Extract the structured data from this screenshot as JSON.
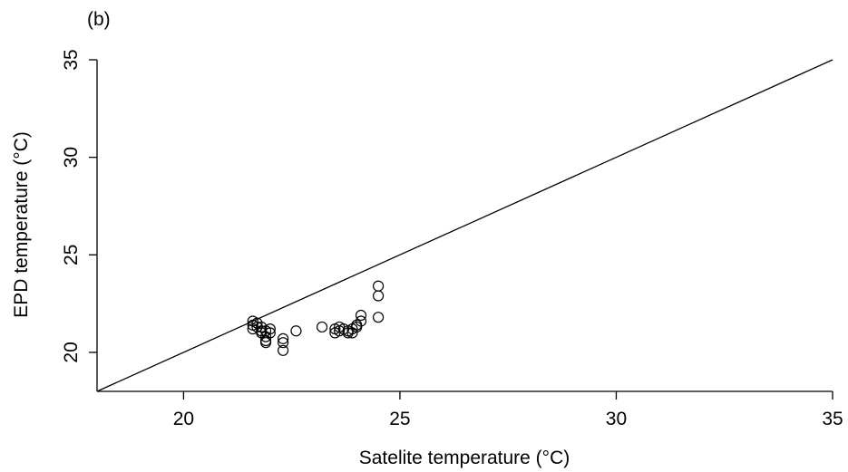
{
  "chart_data": {
    "type": "scatter",
    "panel_label": "(b)",
    "xlabel": "Satelite temperature (°C)",
    "ylabel": "EPD temperature (°C)",
    "xlim": [
      18,
      35
    ],
    "ylim": [
      18,
      35
    ],
    "x_ticks": [
      20,
      25,
      30,
      35
    ],
    "y_ticks": [
      20,
      25,
      30,
      35
    ],
    "grid": false,
    "legend": "none",
    "marker": "open-circle",
    "reference_line": {
      "type": "identity",
      "from": [
        18,
        18
      ],
      "to": [
        35,
        35
      ]
    },
    "points": [
      {
        "x": 21.6,
        "y": 21.6
      },
      {
        "x": 21.6,
        "y": 21.4
      },
      {
        "x": 21.6,
        "y": 21.2
      },
      {
        "x": 21.7,
        "y": 21.5
      },
      {
        "x": 21.7,
        "y": 21.3
      },
      {
        "x": 21.8,
        "y": 21.3
      },
      {
        "x": 21.8,
        "y": 21.1
      },
      {
        "x": 21.8,
        "y": 21.0
      },
      {
        "x": 21.9,
        "y": 21.1
      },
      {
        "x": 21.9,
        "y": 20.8
      },
      {
        "x": 21.9,
        "y": 20.6
      },
      {
        "x": 21.9,
        "y": 20.5
      },
      {
        "x": 22.0,
        "y": 21.2
      },
      {
        "x": 22.0,
        "y": 21.0
      },
      {
        "x": 22.3,
        "y": 20.7
      },
      {
        "x": 22.3,
        "y": 20.5
      },
      {
        "x": 22.3,
        "y": 20.1
      },
      {
        "x": 22.6,
        "y": 21.1
      },
      {
        "x": 23.2,
        "y": 21.3
      },
      {
        "x": 23.5,
        "y": 21.2
      },
      {
        "x": 23.5,
        "y": 21.0
      },
      {
        "x": 23.6,
        "y": 21.3
      },
      {
        "x": 23.6,
        "y": 21.1
      },
      {
        "x": 23.7,
        "y": 21.2
      },
      {
        "x": 23.8,
        "y": 21.1
      },
      {
        "x": 23.8,
        "y": 21.0
      },
      {
        "x": 23.9,
        "y": 21.2
      },
      {
        "x": 23.9,
        "y": 21.0
      },
      {
        "x": 24.0,
        "y": 21.4
      },
      {
        "x": 24.0,
        "y": 21.3
      },
      {
        "x": 24.1,
        "y": 21.6
      },
      {
        "x": 24.1,
        "y": 21.9
      },
      {
        "x": 24.5,
        "y": 23.4
      },
      {
        "x": 24.5,
        "y": 22.9
      },
      {
        "x": 24.5,
        "y": 21.8
      }
    ]
  }
}
